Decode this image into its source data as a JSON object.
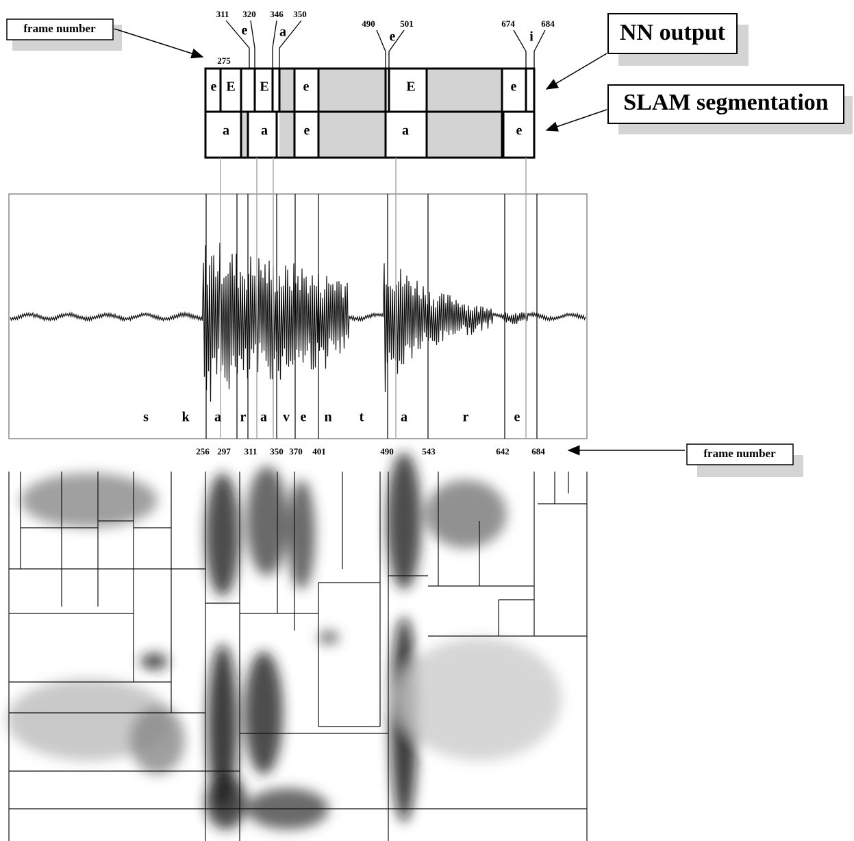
{
  "labels": {
    "frame_number_top": "frame number",
    "frame_number_bottom": "frame number",
    "nn_output": "NN output",
    "slam_segmentation": "SLAM segmentation"
  },
  "top_frames": [
    "311",
    "320",
    "346",
    "350",
    "490",
    "501",
    "674",
    "684",
    "275"
  ],
  "top_phonemes": [
    "e",
    "a",
    "e",
    "i"
  ],
  "nn_row": [
    "e",
    "E",
    "E",
    "e",
    "E",
    "e"
  ],
  "slam_row": [
    "a",
    "a",
    "e",
    "a",
    "e"
  ],
  "phonemes": [
    "s",
    "k",
    "a",
    "r",
    "a",
    "v",
    "e",
    "n",
    "t",
    "a",
    "r",
    "e"
  ],
  "bottom_frames": [
    "256",
    "297",
    "311",
    "350",
    "370",
    "401",
    "490",
    "543",
    "642",
    "684"
  ]
}
